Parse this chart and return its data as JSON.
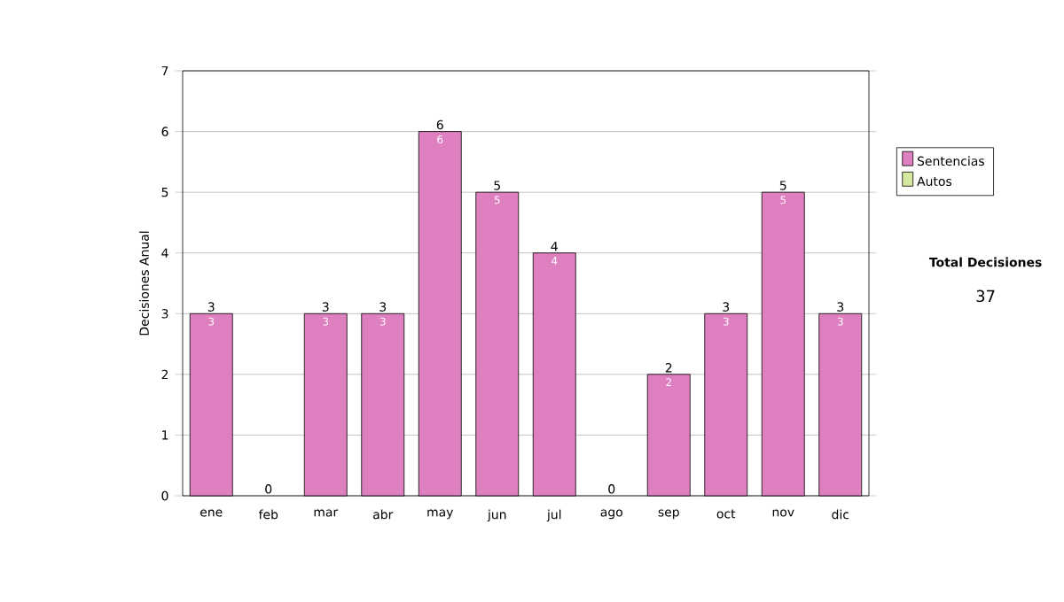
{
  "chart_data": {
    "type": "bar",
    "stacked": true,
    "ylabel": "Decisiones Anual",
    "categories": [
      "ene",
      "feb",
      "mar",
      "abr",
      "may",
      "jun",
      "jul",
      "ago",
      "sep",
      "oct",
      "nov",
      "dic"
    ],
    "series": [
      {
        "name": "Sentencias",
        "color": "#de7fbf",
        "values": [
          3,
          0,
          3,
          3,
          6,
          5,
          4,
          0,
          2,
          3,
          5,
          3
        ],
        "value_labels": [
          "3",
          null,
          "3",
          "3",
          "6",
          "5",
          "4",
          null,
          "2",
          "3",
          "5",
          "3"
        ]
      },
      {
        "name": "Autos",
        "color": "#d4e8a0",
        "values": [
          0,
          0,
          0,
          0,
          0,
          0,
          0,
          0,
          0,
          0,
          0,
          0
        ]
      }
    ],
    "totals": [
      "3",
      "0",
      "3",
      "3",
      "6",
      "5",
      "4",
      "0",
      "2",
      "3",
      "5",
      "3"
    ],
    "ylim": [
      0,
      7
    ],
    "yticks": [
      0,
      1,
      2,
      3,
      4,
      5,
      6,
      7
    ],
    "grid": "y",
    "legend": "right",
    "annotations": [
      "Total Decisiones",
      "37"
    ]
  }
}
